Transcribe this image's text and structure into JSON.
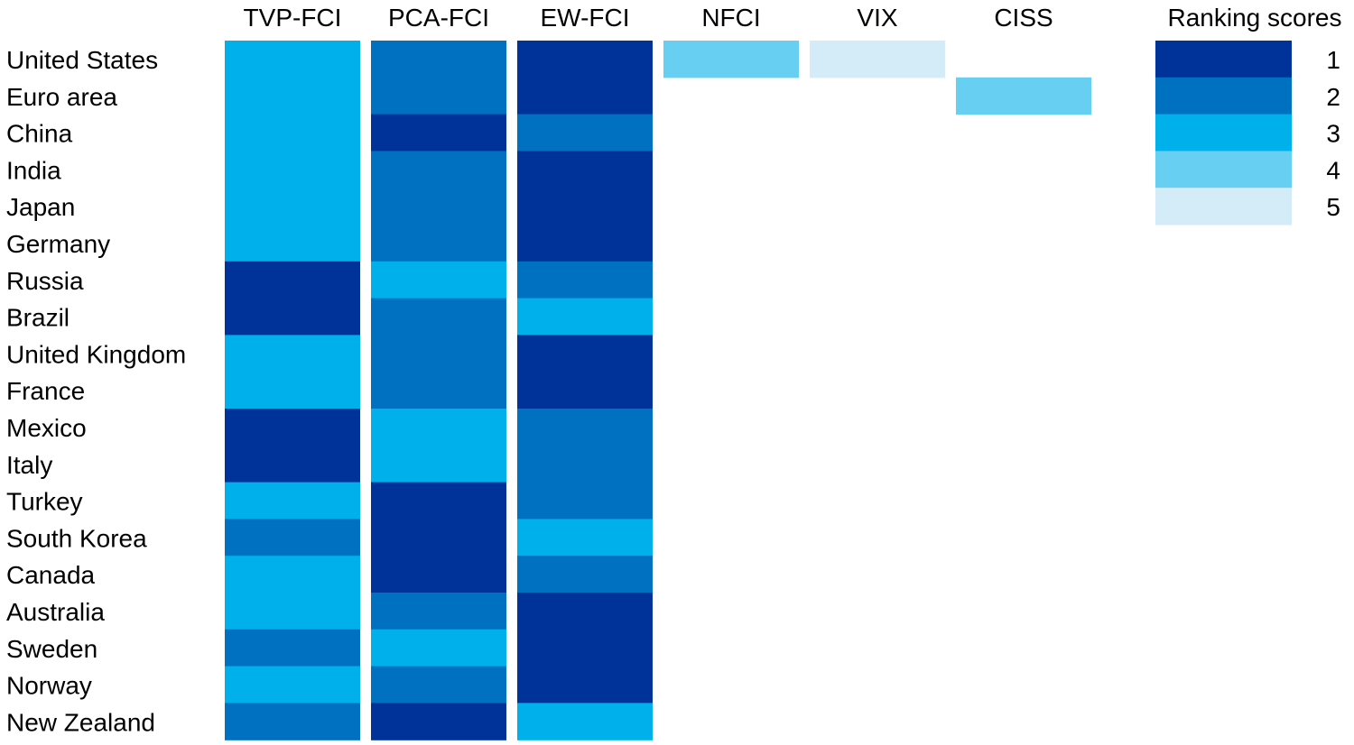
{
  "chart_data": {
    "type": "heatmap",
    "columns": [
      "TVP-FCI",
      "PCA-FCI",
      "EW-FCI",
      "NFCI",
      "VIX",
      "CISS"
    ],
    "rows": [
      "United States",
      "Euro area",
      "China",
      "India",
      "Japan",
      "Germany",
      "Russia",
      "Brazil",
      "United Kingdom",
      "France",
      "Mexico",
      "Italy",
      "Turkey",
      "South Korea",
      "Canada",
      "Australia",
      "Sweden",
      "Norway",
      "New Zealand"
    ],
    "values": [
      [
        3,
        2,
        1,
        4,
        5,
        null
      ],
      [
        3,
        2,
        1,
        null,
        null,
        4
      ],
      [
        3,
        1,
        2,
        null,
        null,
        null
      ],
      [
        3,
        2,
        1,
        null,
        null,
        null
      ],
      [
        3,
        2,
        1,
        null,
        null,
        null
      ],
      [
        3,
        2,
        1,
        null,
        null,
        null
      ],
      [
        1,
        3,
        2,
        null,
        null,
        null
      ],
      [
        1,
        2,
        3,
        null,
        null,
        null
      ],
      [
        3,
        2,
        1,
        null,
        null,
        null
      ],
      [
        3,
        2,
        1,
        null,
        null,
        null
      ],
      [
        1,
        3,
        2,
        null,
        null,
        null
      ],
      [
        1,
        3,
        2,
        null,
        null,
        null
      ],
      [
        3,
        1,
        2,
        null,
        null,
        null
      ],
      [
        2,
        1,
        3,
        null,
        null,
        null
      ],
      [
        3,
        1,
        2,
        null,
        null,
        null
      ],
      [
        3,
        2,
        1,
        null,
        null,
        null
      ],
      [
        2,
        3,
        1,
        null,
        null,
        null
      ],
      [
        3,
        2,
        1,
        null,
        null,
        null
      ],
      [
        2,
        1,
        3,
        null,
        null,
        null
      ]
    ],
    "legend": {
      "title": "Ranking scores",
      "scores": [
        1,
        2,
        3,
        4,
        5
      ],
      "placement": "top-right"
    },
    "colors": {
      "1": "#003399",
      "2": "#0070c0",
      "3": "#00b0eb",
      "4": "#66cff2",
      "5": "#d4ecf7"
    },
    "grid": false
  }
}
